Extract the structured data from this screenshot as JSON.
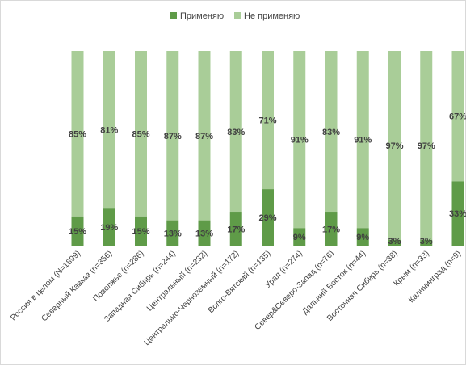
{
  "chart_data": {
    "type": "bar",
    "stacked": true,
    "percent_stacked": true,
    "title": "",
    "xlabel": "",
    "ylabel": "",
    "ylim": [
      0,
      100
    ],
    "grid": false,
    "legend_position": "top",
    "categories": [
      "Россия в целом (N=1899)",
      "Северный Кавказ (n=356)",
      "Поволжье (n=286)",
      "Западная Сибирь (n=244)",
      "Центральный (n=232)",
      "Центрально-Черноземный (n=172)",
      "Волго-Вятский (n=135)",
      "Урал (n=274)",
      "Север&Северо-Запад (n=76)",
      "Дальний Восток (n=44)",
      "Восточная Сибирь (n=38)",
      "Крым (n=33)",
      "Калининград (n=9)"
    ],
    "series": [
      {
        "name": "Применяю",
        "color": "#5f9b48",
        "values": [
          15,
          19,
          15,
          13,
          13,
          17,
          29,
          9,
          17,
          9,
          3,
          3,
          33
        ],
        "labels": [
          "15%",
          "19%",
          "15%",
          "13%",
          "13%",
          "17%",
          "29%",
          "9%",
          "17%",
          "9%",
          "3%",
          "3%",
          "33%"
        ]
      },
      {
        "name": "Не применяю",
        "color": "#a9cd98",
        "values": [
          85,
          81,
          85,
          87,
          87,
          83,
          71,
          91,
          83,
          91,
          97,
          97,
          67
        ],
        "labels": [
          "85%",
          "81%",
          "85%",
          "87%",
          "87%",
          "83%",
          "71%",
          "91%",
          "83%",
          "91%",
          "97%",
          "97%",
          "67%"
        ]
      }
    ]
  }
}
